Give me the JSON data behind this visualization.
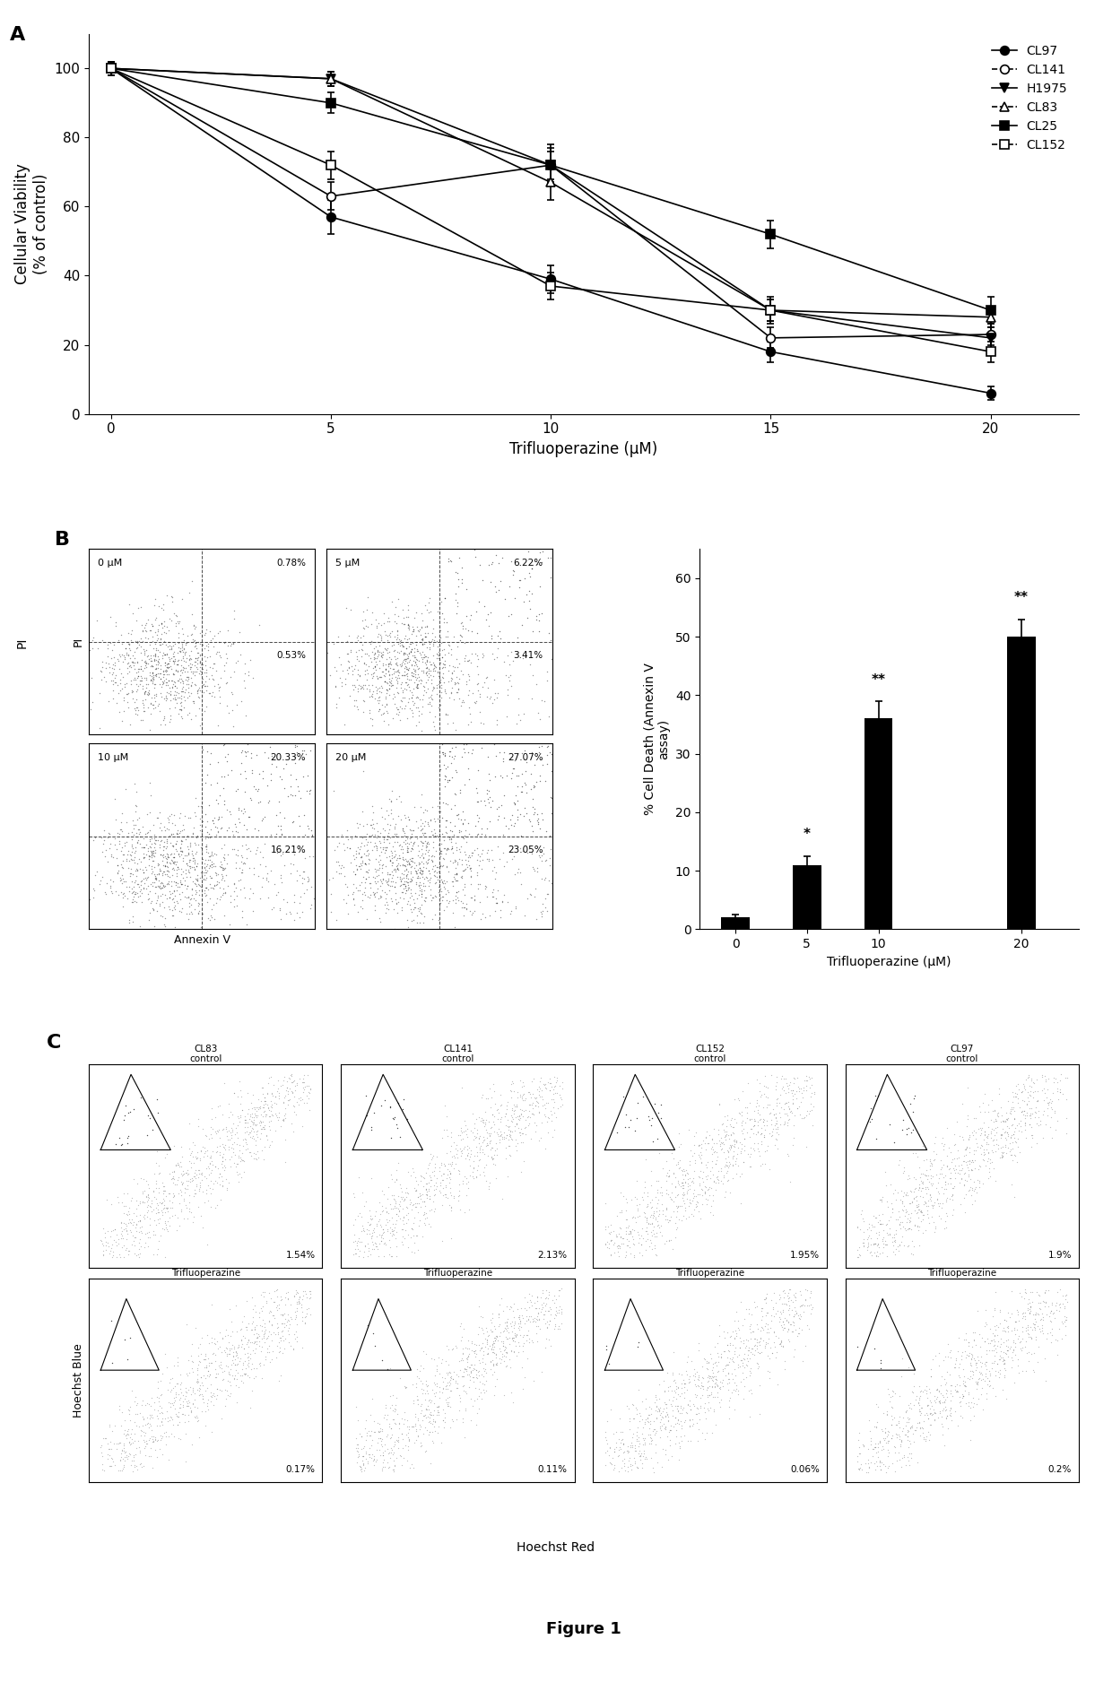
{
  "panel_A": {
    "x": [
      0,
      5,
      10,
      15,
      20
    ],
    "series": {
      "CL97": {
        "y": [
          100,
          57,
          39,
          18,
          6
        ],
        "yerr": [
          2,
          5,
          4,
          3,
          2
        ],
        "marker": "o",
        "fillstyle": "full",
        "color": "black"
      },
      "CL141": {
        "y": [
          100,
          63,
          72,
          22,
          23
        ],
        "yerr": [
          2,
          4,
          6,
          3,
          3
        ],
        "marker": "o",
        "fillstyle": "none",
        "color": "black"
      },
      "H1975": {
        "y": [
          100,
          97,
          72,
          30,
          22
        ],
        "yerr": [
          2,
          2,
          4,
          3,
          3
        ],
        "marker": "v",
        "fillstyle": "full",
        "color": "black"
      },
      "CL83": {
        "y": [
          100,
          97,
          67,
          30,
          28
        ],
        "yerr": [
          2,
          2,
          5,
          4,
          3
        ],
        "marker": "^",
        "fillstyle": "none",
        "color": "black"
      },
      "CL25": {
        "y": [
          100,
          90,
          72,
          52,
          30
        ],
        "yerr": [
          2,
          3,
          5,
          4,
          4
        ],
        "marker": "s",
        "fillstyle": "full",
        "color": "black"
      },
      "CL152": {
        "y": [
          100,
          72,
          37,
          30,
          18
        ],
        "yerr": [
          2,
          4,
          4,
          3,
          3
        ],
        "marker": "s",
        "fillstyle": "none",
        "color": "black"
      }
    },
    "xlabel": "Trifluoperazine (μM)",
    "ylabel": "Cellular Viability\n(% of control)",
    "xlim": [
      -0.5,
      22
    ],
    "ylim": [
      0,
      110
    ],
    "xticks": [
      0,
      5,
      10,
      15,
      20
    ],
    "yticks": [
      0,
      20,
      40,
      60,
      80,
      100
    ]
  },
  "panel_B_scatter": {
    "panels": [
      {
        "label": "0 μM",
        "q2": 0.78,
        "q4": 0.53
      },
      {
        "label": "5 μM",
        "q2": 6.22,
        "q4": 3.41
      },
      {
        "label": "10 μM",
        "q2": 20.33,
        "q4": 16.21
      },
      {
        "label": "20 μM",
        "q2": 27.07,
        "q4": 23.05
      }
    ]
  },
  "panel_B_bar": {
    "x": [
      0,
      5,
      10,
      20
    ],
    "y": [
      2,
      11,
      36,
      50
    ],
    "yerr": [
      0.5,
      1.5,
      3,
      3
    ],
    "xlabel": "Trifluoperazine (μM)",
    "ylabel": "% Cell Death (Annexin V\nassay)",
    "ylim": [
      0,
      65
    ],
    "yticks": [
      0,
      10,
      20,
      30,
      40,
      50,
      60
    ],
    "sig_labels": {
      "5": "*",
      "10": "**",
      "20": "**"
    }
  },
  "panel_C": {
    "top_row": [
      "CL83\ncontrol",
      "CL141\ncontrol",
      "CL152\ncontrol",
      "CL97\ncontrol"
    ],
    "top_pct": [
      "1.54%",
      "2.13%",
      "1.95%",
      "1.9%"
    ],
    "bot_row": [
      "Trifluoperazine",
      "Trifluoperazine",
      "Trifluoperazine",
      "Trifluoperazine"
    ],
    "bot_pct": [
      "0.17%",
      "0.11%",
      "0.06%",
      "0.2%"
    ],
    "xlabel": "Hoechst Red",
    "ylabel": "Hoechst Blue"
  },
  "figure_label": "Figure 1",
  "bg_color": "#ffffff"
}
